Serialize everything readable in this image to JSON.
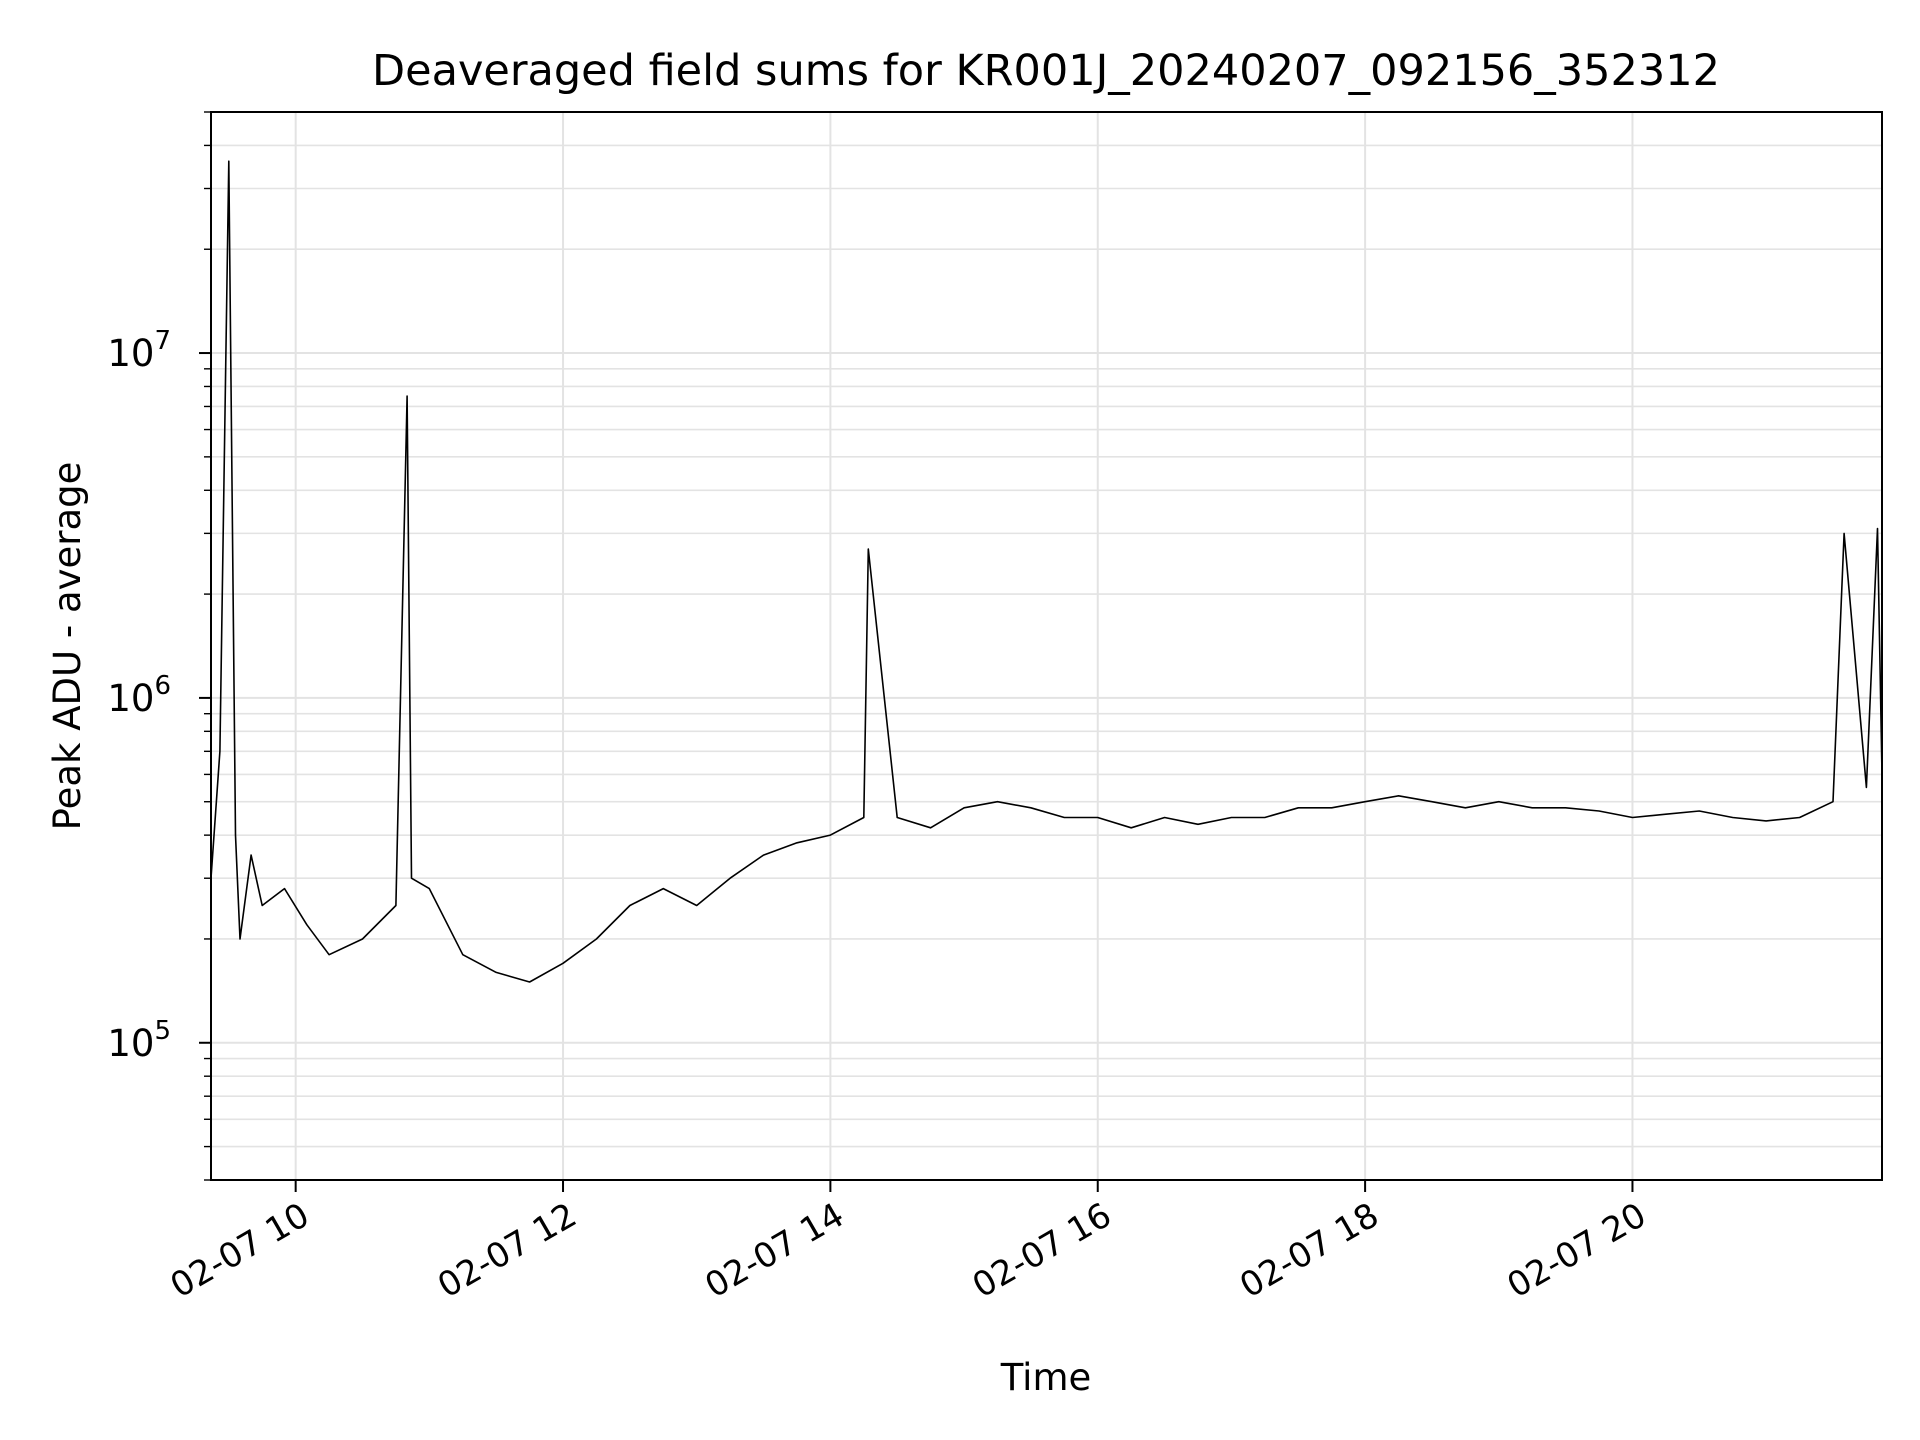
{
  "chart_data": {
    "type": "line",
    "title": "Deaveraged field sums for KR001J_20240207_092156_352312",
    "xlabel": "Time",
    "ylabel": "Peak ADU - average",
    "x_range": [
      "2024-02-07 09:22",
      "2024-02-07 21:52"
    ],
    "x_ticks": [
      {
        "value": "2024-02-07 10:00",
        "label": "02-07 10"
      },
      {
        "value": "2024-02-07 12:00",
        "label": "02-07 12"
      },
      {
        "value": "2024-02-07 14:00",
        "label": "02-07 14"
      },
      {
        "value": "2024-02-07 16:00",
        "label": "02-07 16"
      },
      {
        "value": "2024-02-07 18:00",
        "label": "02-07 18"
      },
      {
        "value": "2024-02-07 20:00",
        "label": "02-07 20"
      }
    ],
    "y_scale": "log",
    "ylim": [
      40000,
      50000000
    ],
    "y_ticks": [
      {
        "value": 100000,
        "base": "10",
        "exp": "5"
      },
      {
        "value": 1000000,
        "base": "10",
        "exp": "6"
      },
      {
        "value": 10000000,
        "base": "10",
        "exp": "7"
      }
    ],
    "grid": "major and minor",
    "series_color": "#000000",
    "series": [
      {
        "x": [
          "2024-02-07 09:22",
          "2024-02-07 09:26",
          "2024-02-07 09:30",
          "2024-02-07 09:33",
          "2024-02-07 09:35",
          "2024-02-07 09:40",
          "2024-02-07 09:45",
          "2024-02-07 09:55",
          "2024-02-07 10:05",
          "2024-02-07 10:15",
          "2024-02-07 10:30",
          "2024-02-07 10:45",
          "2024-02-07 10:50",
          "2024-02-07 10:52",
          "2024-02-07 11:00",
          "2024-02-07 11:15",
          "2024-02-07 11:30",
          "2024-02-07 11:45",
          "2024-02-07 12:00",
          "2024-02-07 12:15",
          "2024-02-07 12:30",
          "2024-02-07 12:45",
          "2024-02-07 13:00",
          "2024-02-07 13:15",
          "2024-02-07 13:30",
          "2024-02-07 13:45",
          "2024-02-07 14:00",
          "2024-02-07 14:15",
          "2024-02-07 14:17",
          "2024-02-07 14:30",
          "2024-02-07 14:45",
          "2024-02-07 15:00",
          "2024-02-07 15:15",
          "2024-02-07 15:30",
          "2024-02-07 15:45",
          "2024-02-07 16:00",
          "2024-02-07 16:15",
          "2024-02-07 16:30",
          "2024-02-07 16:45",
          "2024-02-07 17:00",
          "2024-02-07 17:15",
          "2024-02-07 17:30",
          "2024-02-07 17:45",
          "2024-02-07 18:00",
          "2024-02-07 18:15",
          "2024-02-07 18:30",
          "2024-02-07 18:45",
          "2024-02-07 19:00",
          "2024-02-07 19:15",
          "2024-02-07 19:30",
          "2024-02-07 19:45",
          "2024-02-07 20:00",
          "2024-02-07 20:15",
          "2024-02-07 20:30",
          "2024-02-07 20:45",
          "2024-02-07 21:00",
          "2024-02-07 21:15",
          "2024-02-07 21:30",
          "2024-02-07 21:35",
          "2024-02-07 21:45",
          "2024-02-07 21:50",
          "2024-02-07 21:52"
        ],
        "y": [
          300000,
          700000,
          36000000,
          400000,
          200000,
          350000,
          250000,
          280000,
          220000,
          180000,
          200000,
          250000,
          7500000,
          300000,
          280000,
          180000,
          160000,
          150000,
          170000,
          200000,
          250000,
          280000,
          250000,
          300000,
          350000,
          380000,
          400000,
          450000,
          2700000,
          450000,
          420000,
          480000,
          500000,
          480000,
          450000,
          450000,
          420000,
          450000,
          430000,
          450000,
          450000,
          480000,
          480000,
          500000,
          520000,
          500000,
          480000,
          500000,
          480000,
          480000,
          470000,
          450000,
          460000,
          470000,
          450000,
          440000,
          450000,
          500000,
          3000000,
          550000,
          3100000,
          600000
        ]
      }
    ]
  }
}
